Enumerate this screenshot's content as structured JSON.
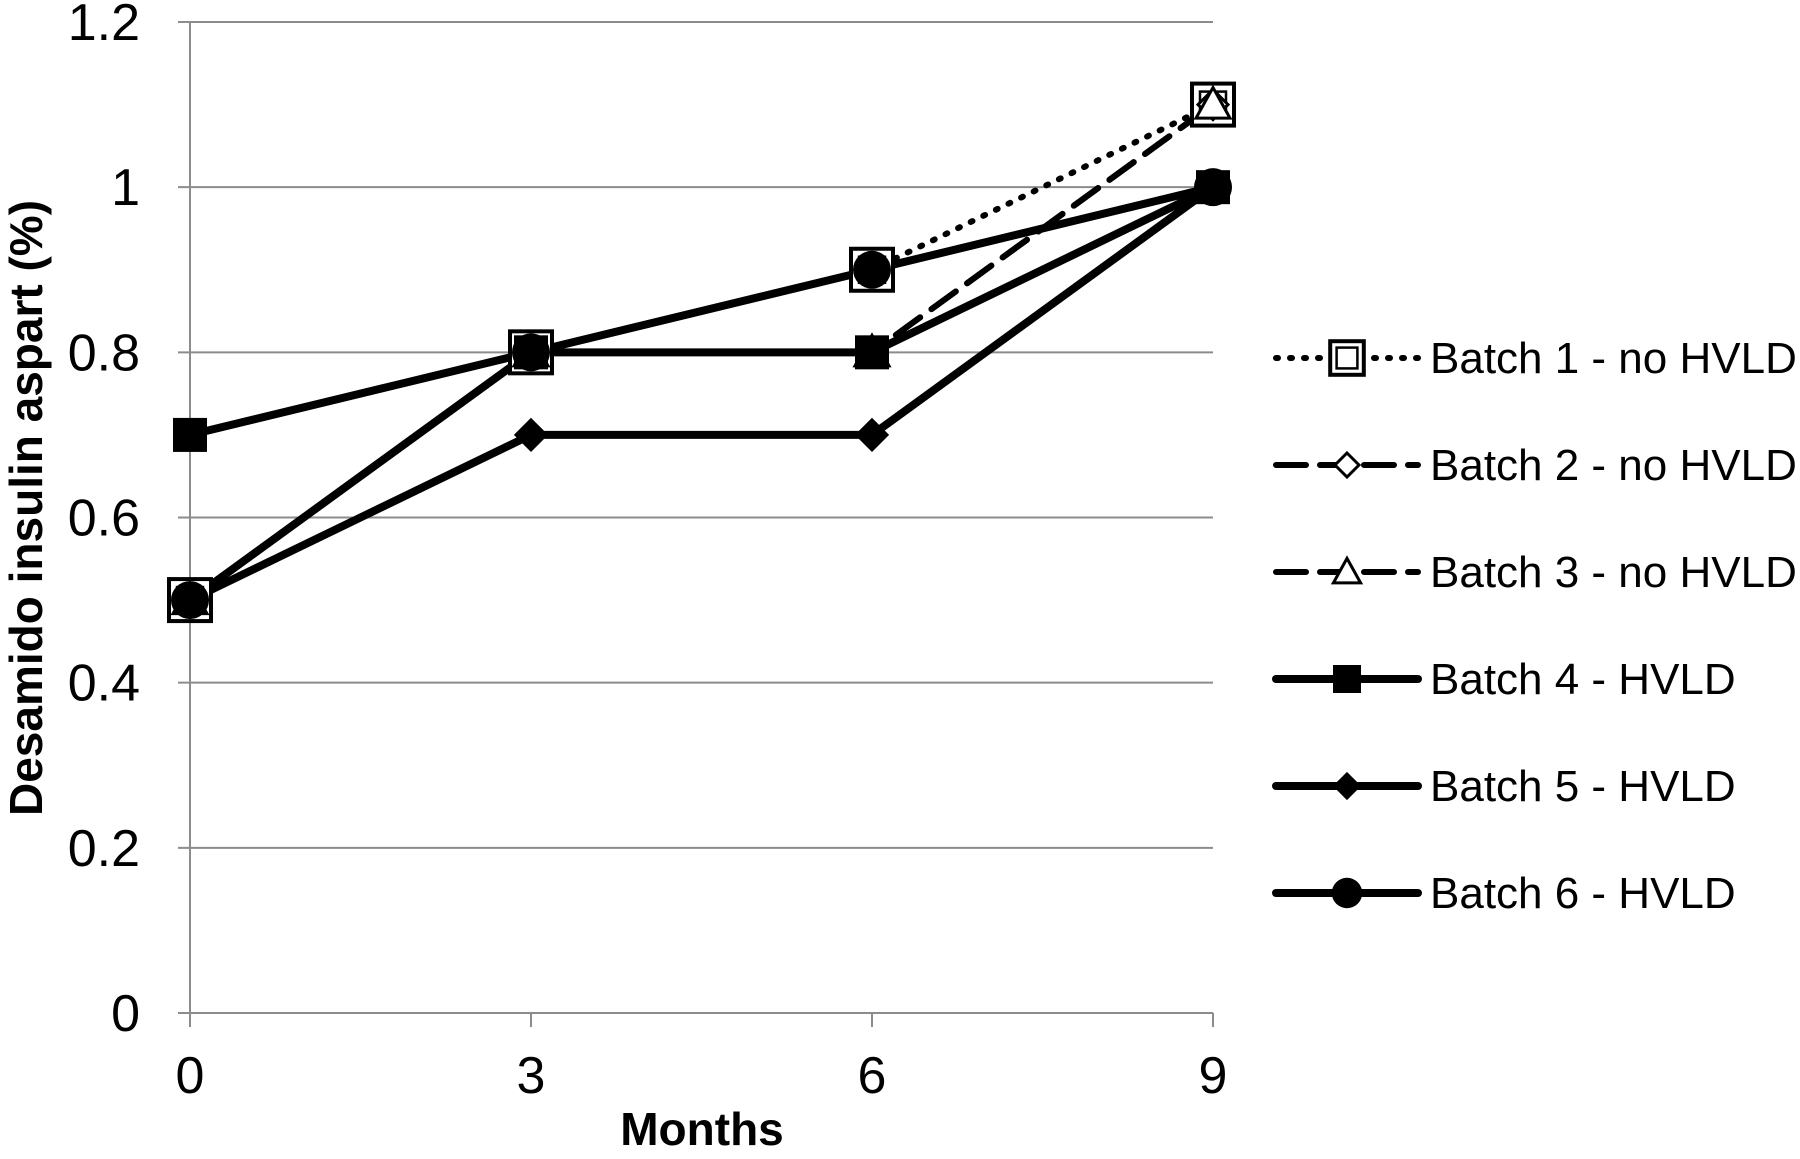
{
  "chart_data": {
    "type": "line",
    "title": "",
    "xlabel": "Months",
    "ylabel": "Desamido insulin aspart (%)",
    "x": [
      0,
      3,
      6,
      9
    ],
    "x_ticks": [
      "0",
      "3",
      "6",
      "9"
    ],
    "y_ticks": [
      "0",
      "0.2",
      "0.4",
      "0.6",
      "0.8",
      "1",
      "1.2"
    ],
    "ylim": [
      0,
      1.2
    ],
    "xlim": [
      0,
      9
    ],
    "grid": "horizontal",
    "legend_position": "right",
    "series": [
      {
        "name": "Batch 1 - no HVLD",
        "values": [
          0.5,
          0.8,
          0.9,
          1.1
        ],
        "line_style": "dotted",
        "marker": "square-open"
      },
      {
        "name": "Batch 2 - no HVLD",
        "values": [
          0.5,
          0.8,
          0.8,
          1.1
        ],
        "line_style": "dashed",
        "marker": "diamond-open"
      },
      {
        "name": "Batch 3 - no HVLD",
        "values": [
          0.5,
          0.8,
          0.8,
          1.1
        ],
        "line_style": "dashed",
        "marker": "triangle-open"
      },
      {
        "name": "Batch 4 - HVLD",
        "values": [
          0.7,
          0.8,
          0.8,
          1.0
        ],
        "line_style": "solid",
        "marker": "square-filled"
      },
      {
        "name": "Batch 5 - HVLD",
        "values": [
          0.5,
          0.7,
          0.7,
          1.0
        ],
        "line_style": "solid",
        "marker": "diamond-filled"
      },
      {
        "name": "Batch 6 - HVLD",
        "values": [
          0.5,
          0.8,
          0.9,
          1.0
        ],
        "line_style": "solid",
        "marker": "circle-filled"
      }
    ]
  }
}
